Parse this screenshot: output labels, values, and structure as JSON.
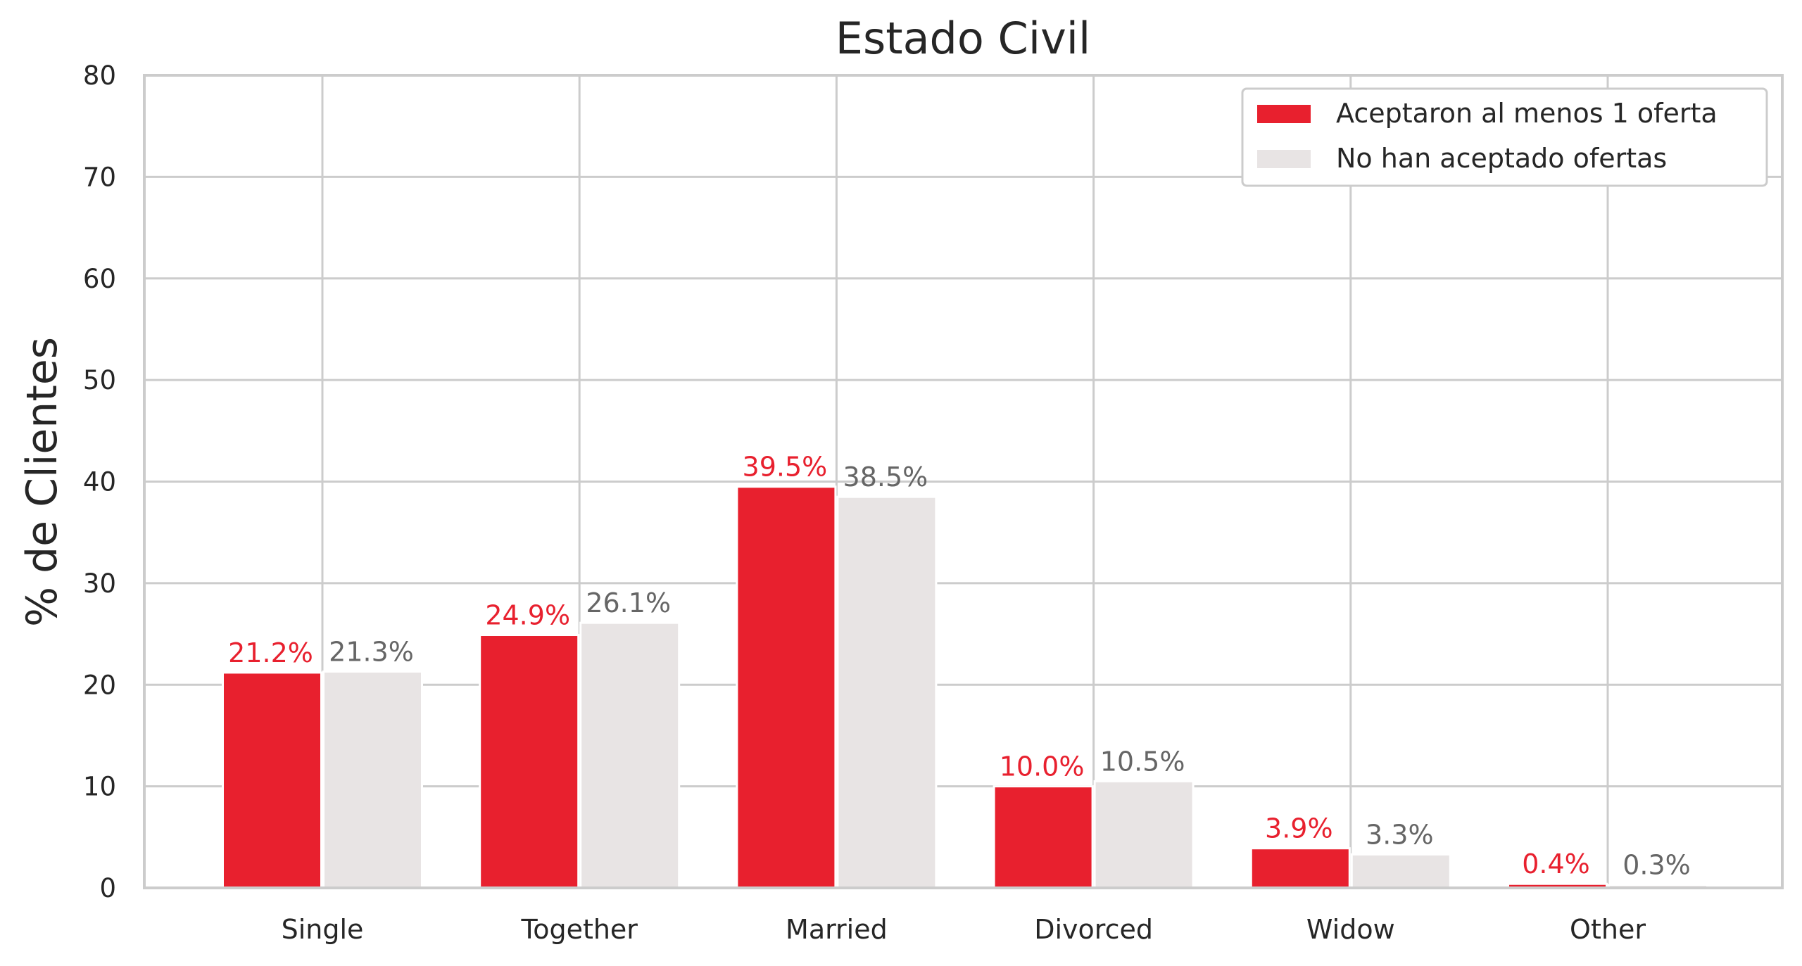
{
  "chart_data": {
    "type": "bar",
    "title": "Estado Civil",
    "xlabel": "",
    "ylabel": "% de Clientes",
    "categories": [
      "Single",
      "Together",
      "Married",
      "Divorced",
      "Widow",
      "Other"
    ],
    "series": [
      {
        "name": "Aceptaron al menos 1 oferta",
        "color": "#e8202e",
        "values": [
          21.2,
          24.9,
          39.5,
          10.0,
          3.9,
          0.4
        ],
        "labels": [
          "21.2%",
          "24.9%",
          "39.5%",
          "10.0%",
          "3.9%",
          "0.4%"
        ]
      },
      {
        "name": "No han aceptado ofertas",
        "color": "#e8e4e4",
        "label_color": "#666666",
        "values": [
          21.3,
          26.1,
          38.5,
          10.5,
          3.3,
          0.3
        ],
        "labels": [
          "21.3%",
          "26.1%",
          "38.5%",
          "10.5%",
          "3.3%",
          "0.3%"
        ]
      }
    ],
    "ylim": [
      0,
      80
    ],
    "yticks": [
      "0",
      "10",
      "20",
      "30",
      "40",
      "50",
      "60",
      "70",
      "80"
    ],
    "grid": true,
    "legend_position": "top-right"
  }
}
